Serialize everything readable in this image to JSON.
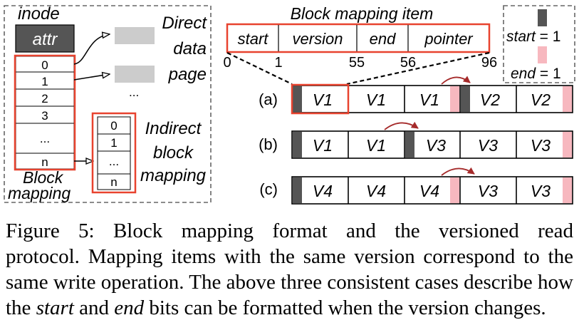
{
  "figure": {
    "left_panel": {
      "inode_label": "inode",
      "attr_label": "attr",
      "block_rows": [
        "0",
        "1",
        "2",
        "3",
        "...",
        "n"
      ],
      "block_mapping_label": [
        "Block",
        "mapping"
      ],
      "direct_label": [
        "Direct",
        "data",
        "page"
      ],
      "direct_ellipsis": "...",
      "indirect_rows": [
        "0",
        "1",
        "...",
        "n"
      ],
      "indirect_label": [
        "Indirect",
        "block",
        "mapping"
      ]
    },
    "mapping_item": {
      "title": "Block mapping item",
      "fields": [
        "start",
        "version",
        "end",
        "pointer"
      ],
      "bit_positions": [
        "0",
        "1",
        "55",
        "56",
        "96"
      ]
    },
    "legend": {
      "start_label": "start",
      "start_value": " = 1",
      "end_label": "end",
      "end_value": " = 1",
      "start_color": "#555555",
      "end_color": "#f7b8bf"
    },
    "cases": [
      {
        "label": "(a)",
        "cells": [
          "V1",
          "V1",
          "V1",
          "V2",
          "V2"
        ]
      },
      {
        "label": "(b)",
        "cells": [
          "V1",
          "V1",
          "V3",
          "V3",
          "V3"
        ]
      },
      {
        "label": "(c)",
        "cells": [
          "V4",
          "V4",
          "V4",
          "V3",
          "V3"
        ]
      }
    ],
    "colors": {
      "highlight": "#e8432f",
      "arrow": "#a52a2a",
      "attr_fill": "#555555",
      "direct_page_fill": "#cccccc",
      "dashed_border": "#666666"
    }
  },
  "caption": {
    "line1": "Figure 5: Block mapping format and the versioned read",
    "line2": "protocol. Mapping items with the same version correspond to the",
    "line3": "same write operation. The above three consistent cases describe how",
    "line4_a": "the ",
    "line4_start": "start",
    "line4_b": " and ",
    "line4_end": "end",
    "line4_c": " bits can be formatted when the version changes."
  }
}
